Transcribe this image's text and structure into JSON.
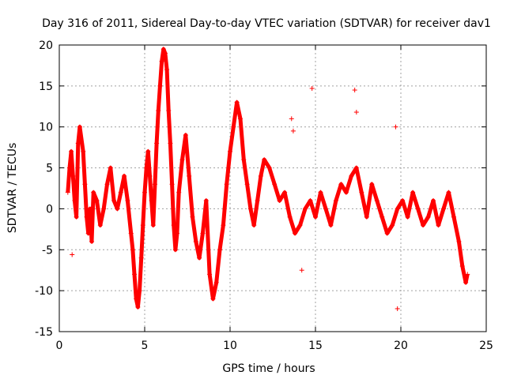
{
  "chart_data": {
    "type": "scatter",
    "title": "Day 316 of 2011, Sidereal Day-to-day VTEC variation (SDTVAR) for receiver dav1",
    "xlabel": "GPS time / hours",
    "ylabel": "SDTVAR / TECUs",
    "xlim": [
      0,
      25
    ],
    "ylim": [
      -15,
      20
    ],
    "xticks": [
      0,
      5,
      10,
      15,
      20,
      25
    ],
    "yticks": [
      -15,
      -10,
      -5,
      0,
      5,
      10,
      15,
      20
    ],
    "grid": true,
    "marker": "+",
    "marker_color": "#ff0000",
    "series": [
      {
        "name": "SDTVAR",
        "x": [
          0.5,
          0.6,
          0.7,
          0.8,
          0.9,
          1.0,
          1.1,
          1.2,
          1.4,
          1.5,
          1.6,
          1.7,
          1.8,
          1.9,
          2.0,
          2.2,
          2.4,
          2.6,
          2.8,
          3.0,
          3.2,
          3.4,
          3.6,
          3.8,
          4.0,
          4.2,
          4.3,
          4.4,
          4.5,
          4.6,
          4.7,
          4.8,
          4.9,
          5.0,
          5.1,
          5.2,
          5.3,
          5.4,
          5.5,
          5.6,
          5.7,
          5.8,
          5.9,
          6.0,
          6.1,
          6.2,
          6.3,
          6.4,
          6.5,
          6.6,
          6.7,
          6.8,
          6.9,
          7.0,
          7.2,
          7.4,
          7.6,
          7.8,
          8.0,
          8.2,
          8.4,
          8.6,
          8.8,
          9.0,
          9.2,
          9.4,
          9.6,
          9.8,
          10.0,
          10.2,
          10.4,
          10.6,
          10.8,
          11.0,
          11.2,
          11.4,
          11.6,
          11.8,
          12.0,
          12.3,
          12.6,
          12.9,
          13.2,
          13.5,
          13.8,
          14.1,
          14.4,
          14.7,
          15.0,
          15.3,
          15.6,
          15.9,
          16.2,
          16.5,
          16.8,
          17.1,
          17.4,
          17.7,
          18.0,
          18.3,
          18.6,
          18.9,
          19.2,
          19.5,
          19.8,
          20.1,
          20.4,
          20.7,
          21.0,
          21.3,
          21.6,
          21.9,
          22.2,
          22.5,
          22.8,
          23.1,
          23.4,
          23.6,
          23.8,
          23.9
        ],
        "y": [
          2,
          5,
          7,
          4,
          1,
          -1,
          8,
          10,
          7,
          3,
          -1,
          -3,
          0,
          -4,
          2,
          1,
          -2,
          0,
          3,
          5,
          1,
          0,
          2,
          4,
          1,
          -3,
          -5,
          -8,
          -11,
          -12,
          -10,
          -6,
          -2,
          2,
          5,
          7,
          4,
          1,
          -2,
          3,
          8,
          12,
          15,
          18,
          19.5,
          19,
          17,
          12,
          8,
          3,
          -2,
          -5,
          -3,
          2,
          6,
          9,
          4,
          -1,
          -4,
          -6,
          -3,
          1,
          -8,
          -11,
          -9,
          -5,
          -2,
          3,
          7,
          10,
          13,
          11,
          6,
          3,
          0,
          -2,
          1,
          4,
          6,
          5,
          3,
          1,
          2,
          -1,
          -3,
          -2,
          0,
          1,
          -1,
          2,
          0,
          -2,
          1,
          3,
          2,
          4,
          5,
          2,
          -1,
          3,
          1,
          -1,
          -3,
          -2,
          0,
          1,
          -1,
          2,
          0,
          -2,
          -1,
          1,
          -2,
          0,
          2,
          -1,
          -4,
          -7,
          -9,
          -8
        ]
      }
    ],
    "outliers": {
      "x": [
        0.75,
        13.6,
        13.7,
        14.2,
        14.8,
        15.0,
        17.3,
        17.4,
        19.7,
        19.8
      ],
      "y": [
        -5.6,
        11,
        9.5,
        -7.5,
        14.7,
        -0.5,
        14.5,
        11.8,
        10,
        -12.2
      ]
    }
  }
}
